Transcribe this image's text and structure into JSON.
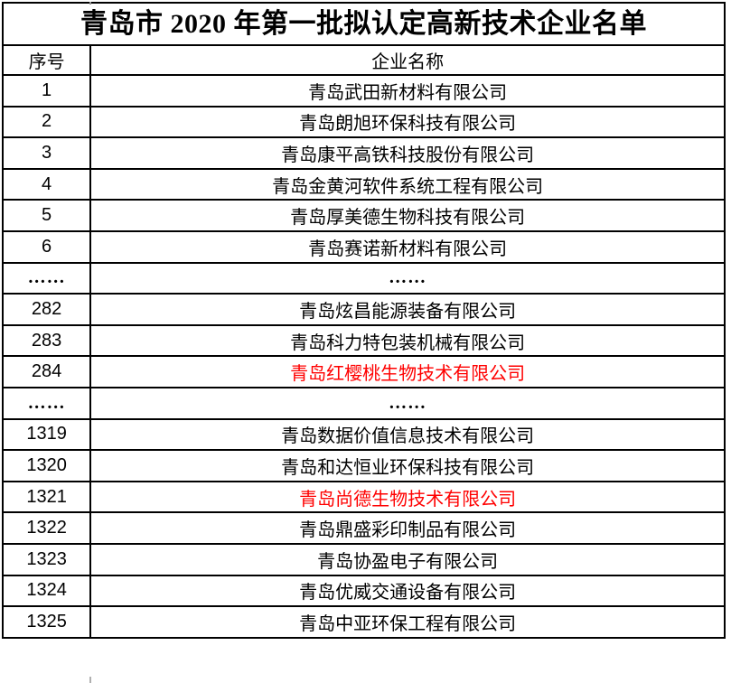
{
  "title": "青岛市 2020 年第一批拟认定高新技术企业名单",
  "table": {
    "columns": {
      "seq": "序号",
      "name": "企业名称"
    },
    "rows": [
      {
        "seq": "1",
        "name": "青岛武田新材料有限公司",
        "red": false,
        "ellipsis": false
      },
      {
        "seq": "2",
        "name": "青岛朗旭环保科技有限公司",
        "red": false,
        "ellipsis": false
      },
      {
        "seq": "3",
        "name": "青岛康平高铁科技股份有限公司",
        "red": false,
        "ellipsis": false
      },
      {
        "seq": "4",
        "name": "青岛金黄河软件系统工程有限公司",
        "red": false,
        "ellipsis": false
      },
      {
        "seq": "5",
        "name": "青岛厚美德生物科技有限公司",
        "red": false,
        "ellipsis": false
      },
      {
        "seq": "6",
        "name": "青岛赛诺新材料有限公司",
        "red": false,
        "ellipsis": false
      },
      {
        "seq": "……",
        "name": "……",
        "red": false,
        "ellipsis": true
      },
      {
        "seq": "282",
        "name": "青岛炫昌能源装备有限公司",
        "red": false,
        "ellipsis": false
      },
      {
        "seq": "283",
        "name": "青岛科力特包装机械有限公司",
        "red": false,
        "ellipsis": false
      },
      {
        "seq": "284",
        "name": "青岛红樱桃生物技术有限公司",
        "red": true,
        "ellipsis": false
      },
      {
        "seq": "……",
        "name": "……",
        "red": false,
        "ellipsis": true
      },
      {
        "seq": "1319",
        "name": "青岛数据价值信息技术有限公司",
        "red": false,
        "ellipsis": false
      },
      {
        "seq": "1320",
        "name": "青岛和达恒业环保科技有限公司",
        "red": false,
        "ellipsis": false
      },
      {
        "seq": "1321",
        "name": "青岛尚德生物技术有限公司",
        "red": true,
        "ellipsis": false
      },
      {
        "seq": "1322",
        "name": "青岛鼎盛彩印制品有限公司",
        "red": false,
        "ellipsis": false
      },
      {
        "seq": "1323",
        "name": "青岛协盈电子有限公司",
        "red": false,
        "ellipsis": false
      },
      {
        "seq": "1324",
        "name": "青岛优威交通设备有限公司",
        "red": false,
        "ellipsis": false
      },
      {
        "seq": "1325",
        "name": "青岛中亚环保工程有限公司",
        "red": false,
        "ellipsis": false
      }
    ]
  },
  "colors": {
    "highlight_red": "#ff0000",
    "border_black": "#000000",
    "text_black": "#000000"
  }
}
